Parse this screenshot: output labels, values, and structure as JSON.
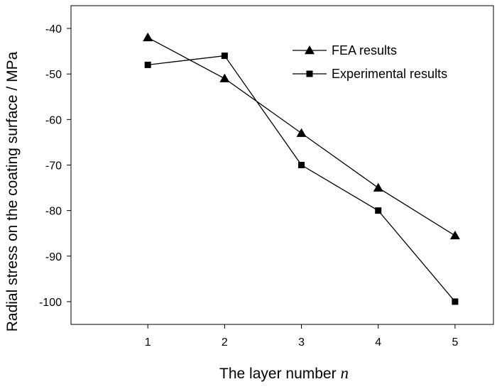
{
  "chart_data": {
    "type": "line",
    "title": "",
    "xlabel": "The layer number ",
    "xlabel_var": "n",
    "ylabel": "Radial stress on the coating surface / MPa",
    "x": [
      1,
      2,
      3,
      4,
      5
    ],
    "xlim": [
      0.0,
      5.5
    ],
    "ylim": [
      -105,
      -35
    ],
    "xticks": [
      1,
      2,
      3,
      4,
      5
    ],
    "yticks": [
      -100,
      -90,
      -80,
      -70,
      -60,
      -50,
      -40
    ],
    "grid": false,
    "legend_position": "top-right",
    "series": [
      {
        "name": "FEA results",
        "marker": "triangle",
        "color": "#000000",
        "values": [
          -42,
          -51,
          -63,
          -75,
          -85.5
        ]
      },
      {
        "name": "Experimental results",
        "marker": "square",
        "color": "#000000",
        "values": [
          -48,
          -46,
          -70,
          -80,
          -100
        ]
      }
    ]
  }
}
